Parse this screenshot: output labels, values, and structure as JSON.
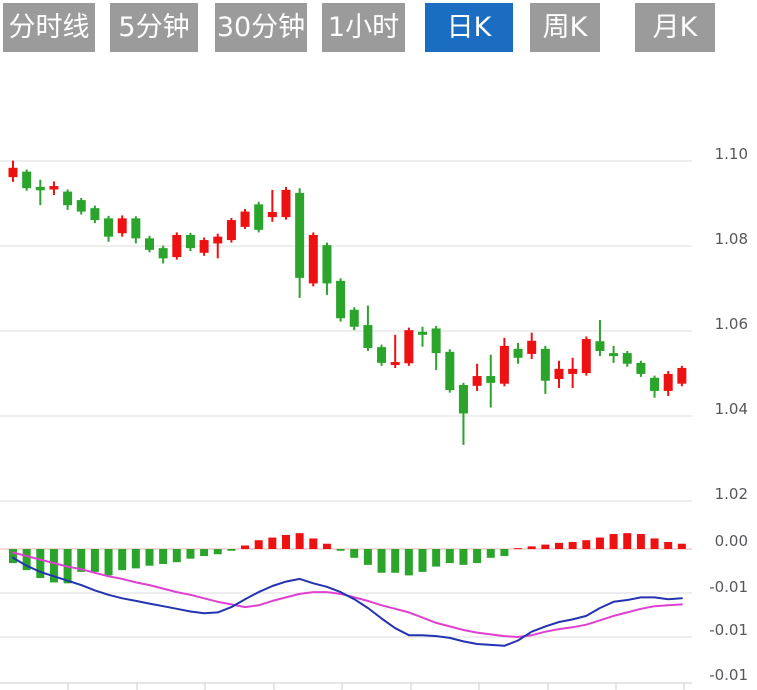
{
  "toolbar": {
    "active_tab": "日K",
    "tabs": [
      {
        "label": "分时线",
        "active": false
      },
      {
        "label": "5分钟",
        "active": false
      },
      {
        "label": "30分钟",
        "active": false
      },
      {
        "label": "1小时",
        "active": false
      },
      {
        "label": "日K",
        "active": true
      },
      {
        "label": "周K",
        "active": false
      },
      {
        "label": "月K",
        "active": false
      }
    ]
  },
  "colors": {
    "tab_bg": "#9B9B9B",
    "tab_active_bg": "#1B6DC1",
    "tab_text": "#FFFFFF",
    "up": "#ED1112",
    "down": "#2AA42A",
    "grid": "#DDDDDD",
    "zero_line": "#EBB3B3",
    "axis_line": "#CCCCCC",
    "axis_text": "#57575B",
    "dif_line": "#2433B0",
    "dea_line": "#E040D0"
  },
  "chart_data": {
    "type": "candlestick",
    "title": "日K candlestick chart with MACD sub-chart",
    "legend_position": "none",
    "grid": true,
    "price_axis_labels": [
      "1.10",
      "1.08",
      "1.06",
      "1.04",
      "1.02"
    ],
    "price_axis_values": [
      1.1,
      1.08,
      1.06,
      1.04,
      1.02
    ],
    "macd_axis_labels": [
      "0.00",
      "-0.01",
      "-0.01",
      "-0.01"
    ],
    "macd_axis_values": [
      0.0,
      -0.005,
      -0.01,
      -0.015
    ],
    "ylim_price": [
      1.015,
      1.102
    ],
    "ylim_macd": [
      -0.0155,
      0.0022
    ],
    "ohlc_format": [
      "open",
      "high",
      "low",
      "close"
    ],
    "candles_ohlc": [
      [
        1.0962,
        1.1001,
        1.0951,
        1.0984
      ],
      [
        1.0975,
        1.098,
        1.093,
        1.0936
      ],
      [
        1.0939,
        1.0956,
        1.0896,
        1.0931
      ],
      [
        1.0933,
        1.0952,
        1.092,
        1.0941
      ],
      [
        1.0928,
        1.0933,
        1.0885,
        1.0896
      ],
      [
        1.0908,
        1.0913,
        1.0874,
        1.0881
      ],
      [
        1.0889,
        1.0895,
        1.0854,
        1.0861
      ],
      [
        1.0865,
        1.0871,
        1.081,
        1.0822
      ],
      [
        1.083,
        1.0872,
        1.0822,
        1.0865
      ],
      [
        1.0865,
        1.087,
        1.0806,
        1.0818
      ],
      [
        1.0818,
        1.0824,
        1.0785,
        1.0791
      ],
      [
        1.0795,
        1.0801,
        1.0759,
        1.0771
      ],
      [
        1.0774,
        1.0832,
        1.0768,
        1.0826
      ],
      [
        1.0826,
        1.0831,
        1.0788,
        1.0795
      ],
      [
        1.0784,
        1.082,
        1.0777,
        1.0814
      ],
      [
        1.0806,
        1.0829,
        1.0771,
        1.0822
      ],
      [
        1.0814,
        1.0866,
        1.0808,
        1.0861
      ],
      [
        1.0845,
        1.0887,
        1.084,
        1.0881
      ],
      [
        1.0898,
        1.0904,
        1.0832,
        1.0838
      ],
      [
        1.0868,
        1.0932,
        1.0857,
        1.088
      ],
      [
        1.0868,
        1.0939,
        1.0862,
        1.0932
      ],
      [
        1.0925,
        1.0936,
        1.0678,
        1.0725
      ],
      [
        1.0712,
        1.0832,
        1.0705,
        1.0826
      ],
      [
        1.0802,
        1.0808,
        1.0685,
        1.0712
      ],
      [
        1.0718,
        1.0724,
        1.0622,
        1.063
      ],
      [
        1.065,
        1.0656,
        1.0602,
        1.061
      ],
      [
        1.0614,
        1.066,
        1.0553,
        1.056
      ],
      [
        1.0562,
        1.0568,
        1.0518,
        1.0525
      ],
      [
        1.052,
        1.0591,
        1.0513,
        1.0527
      ],
      [
        1.0524,
        1.0608,
        1.0518,
        1.0602
      ],
      [
        1.0598,
        1.061,
        1.0563,
        1.0591
      ],
      [
        1.0606,
        1.0612,
        1.0508,
        1.0548
      ],
      [
        1.0551,
        1.0557,
        1.0455,
        1.0461
      ],
      [
        1.0473,
        1.0478,
        1.0332,
        1.0406
      ],
      [
        1.0471,
        1.0523,
        1.0459,
        1.0494
      ],
      [
        1.0494,
        1.0544,
        1.042,
        1.0478
      ],
      [
        1.0476,
        1.0584,
        1.047,
        1.0565
      ],
      [
        1.0558,
        1.0572,
        1.0523,
        1.0537
      ],
      [
        1.0546,
        1.0596,
        1.0534,
        1.0577
      ],
      [
        1.0558,
        1.0565,
        1.0452,
        1.0483
      ],
      [
        1.0487,
        1.053,
        1.0466,
        1.0511
      ],
      [
        1.0499,
        1.0537,
        1.0466,
        1.0511
      ],
      [
        1.0501,
        1.0587,
        1.0495,
        1.0581
      ],
      [
        1.0576,
        1.0626,
        1.0541,
        1.0553
      ],
      [
        1.0548,
        1.0565,
        1.0525,
        1.0541
      ],
      [
        1.0548,
        1.0553,
        1.0516,
        1.0523
      ],
      [
        1.0525,
        1.053,
        1.0492,
        1.0499
      ],
      [
        1.049,
        1.0495,
        1.0443,
        1.0459
      ],
      [
        1.0459,
        1.0506,
        1.0447,
        1.0499
      ],
      [
        1.0476,
        1.0518,
        1.047,
        1.0513
      ]
    ],
    "macd": {
      "dif": [
        -0.001,
        -0.0019,
        -0.0026,
        -0.0031,
        -0.0036,
        -0.0041,
        -0.0047,
        -0.0052,
        -0.0056,
        -0.0059,
        -0.0062,
        -0.0065,
        -0.0068,
        -0.0071,
        -0.0073,
        -0.0072,
        -0.0066,
        -0.0057,
        -0.0049,
        -0.0042,
        -0.0037,
        -0.0034,
        -0.0039,
        -0.0043,
        -0.0049,
        -0.0057,
        -0.0067,
        -0.0079,
        -0.009,
        -0.0098,
        -0.0098,
        -0.0099,
        -0.0101,
        -0.0105,
        -0.0108,
        -0.0109,
        -0.011,
        -0.0104,
        -0.0094,
        -0.0088,
        -0.0083,
        -0.008,
        -0.0076,
        -0.0067,
        -0.006,
        -0.0058,
        -0.0055,
        -0.0055,
        -0.0057,
        -0.0056
      ],
      "dea": [
        -0.0004,
        -0.0008,
        -0.0012,
        -0.0016,
        -0.002,
        -0.0023,
        -0.0027,
        -0.0031,
        -0.0034,
        -0.0038,
        -0.0041,
        -0.0045,
        -0.0049,
        -0.0052,
        -0.0056,
        -0.006,
        -0.0063,
        -0.0066,
        -0.0064,
        -0.0059,
        -0.0055,
        -0.0051,
        -0.0049,
        -0.0049,
        -0.0051,
        -0.0055,
        -0.0059,
        -0.0064,
        -0.0068,
        -0.0072,
        -0.0078,
        -0.0084,
        -0.0088,
        -0.0092,
        -0.0095,
        -0.0097,
        -0.0099,
        -0.01,
        -0.0098,
        -0.0094,
        -0.0091,
        -0.0089,
        -0.0086,
        -0.0081,
        -0.0076,
        -0.0072,
        -0.0068,
        -0.0065,
        -0.0064,
        -0.0063
      ],
      "hist": [
        -0.0016,
        -0.0024,
        -0.0033,
        -0.0038,
        -0.0039,
        -0.0026,
        -0.0026,
        -0.003,
        -0.0024,
        -0.0022,
        -0.0019,
        -0.0017,
        -0.0015,
        -0.0011,
        -0.0008,
        -0.0006,
        -0.0002,
        0.0004,
        0.001,
        0.0013,
        0.0016,
        0.0018,
        0.0012,
        0.0006,
        -0.0002,
        -0.001,
        -0.0018,
        -0.0027,
        -0.0027,
        -0.003,
        -0.0026,
        -0.002,
        -0.0016,
        -0.0018,
        -0.0016,
        -0.001,
        -0.0008,
        0.0001,
        0.0003,
        0.0005,
        0.0007,
        0.0008,
        0.001,
        0.0013,
        0.0017,
        0.0018,
        0.0017,
        0.0012,
        0.0008,
        0.0006
      ]
    }
  }
}
